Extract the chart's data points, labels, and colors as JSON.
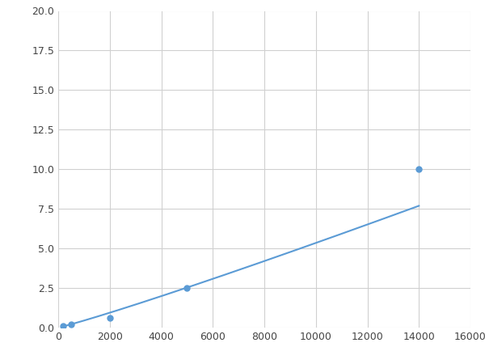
{
  "x": [
    200,
    500,
    2000,
    5000,
    14000
  ],
  "y": [
    0.1,
    0.2,
    0.6,
    2.5,
    10.0
  ],
  "line_color": "#5b9bd5",
  "marker_color": "#5b9bd5",
  "marker_style": "o",
  "marker_size": 5,
  "line_width": 1.5,
  "xlim": [
    0,
    16000
  ],
  "ylim": [
    0,
    20.0
  ],
  "xticks": [
    0,
    2000,
    4000,
    6000,
    8000,
    10000,
    12000,
    14000,
    16000
  ],
  "yticks": [
    0.0,
    2.5,
    5.0,
    7.5,
    10.0,
    12.5,
    15.0,
    17.5,
    20.0
  ],
  "grid": true,
  "background_color": "#ffffff",
  "fig_width": 6.0,
  "fig_height": 4.5,
  "dpi": 100
}
